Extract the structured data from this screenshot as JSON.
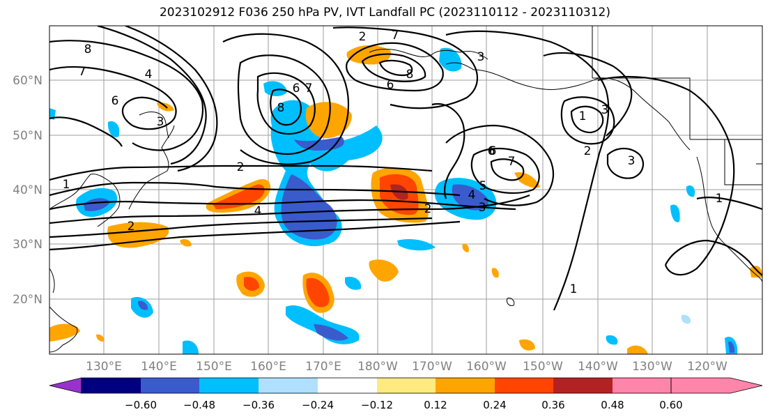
{
  "title": "2023102912 F036 250 hPa PV, IVT Landfall PC (2023110112 - 2023110312)",
  "map": {
    "projection": "equirectangular",
    "lon_range_east": [
      121,
      245
    ],
    "lat_range": [
      10,
      70
    ],
    "gridlines": true,
    "lat_labels": [
      "60°N",
      "50°N",
      "40°N",
      "30°N",
      "20°N"
    ],
    "lon_labels": [
      "130°E",
      "140°E",
      "150°E",
      "160°E",
      "170°E",
      "180°W",
      "170°W",
      "160°W",
      "150°W",
      "140°W",
      "130°W",
      "120°W"
    ],
    "contour_labels": [
      "8",
      "7",
      "6",
      "4",
      "3",
      "2",
      "1",
      "2",
      "7",
      "6",
      "6",
      "8",
      "7",
      "6",
      "8",
      "7",
      "3",
      "2",
      "1",
      "2",
      "4",
      "3",
      "5",
      "6",
      "1",
      "4",
      "3",
      "2",
      "3",
      "1"
    ]
  },
  "colorbar": {
    "extend": "both",
    "colors": [
      "#9932cc",
      "#000080",
      "#3a5bcc",
      "#00bfff",
      "#b0e0ff",
      "#ffffff",
      "#ffea80",
      "#ffa500",
      "#ff4500",
      "#b22222",
      "#ff85aa"
    ],
    "tick_labels": [
      "−0.60",
      "−0.48",
      "−0.36",
      "−0.24",
      "−0.12",
      "0.12",
      "0.24",
      "0.36",
      "0.48",
      "0.60"
    ]
  }
}
